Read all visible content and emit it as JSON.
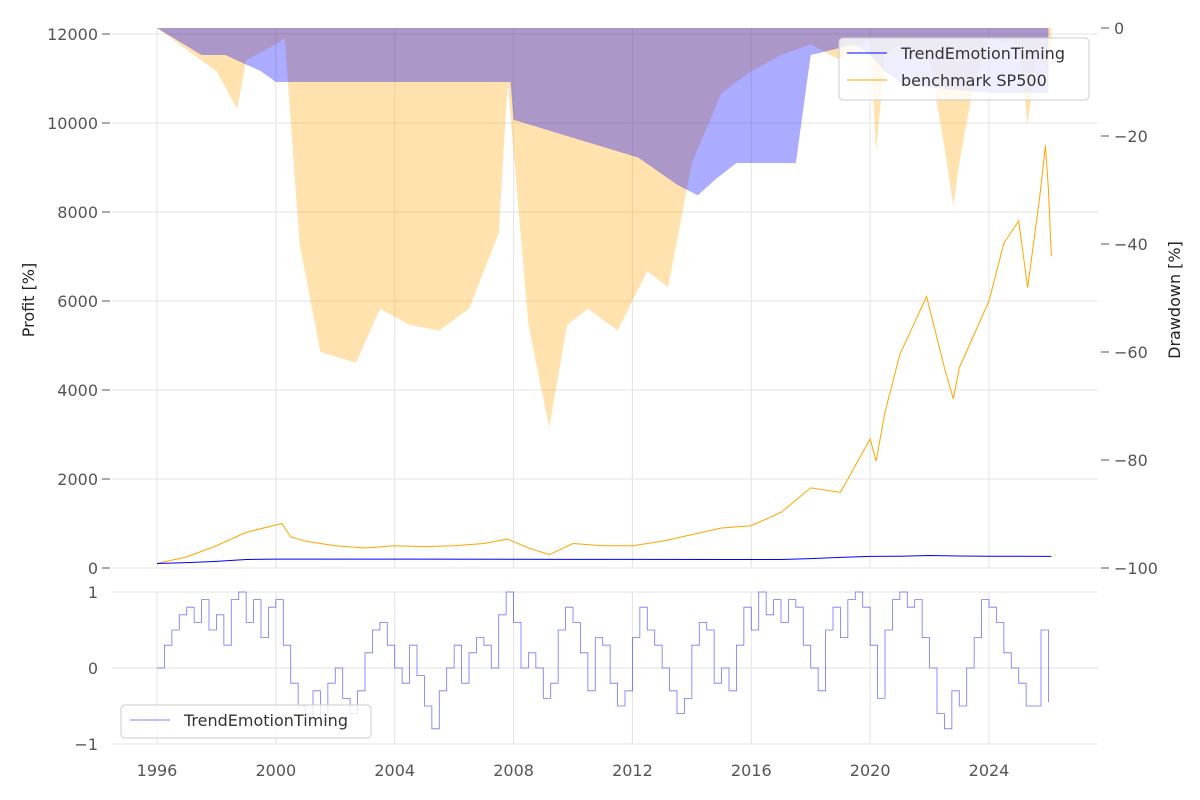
{
  "chart_data": [
    {
      "type": "line",
      "panel": "profit-and-drawdown",
      "ylabel": "Profit [%]",
      "ylabel_right": "Drawdown [%]",
      "ylim": [
        0,
        12000
      ],
      "ylim_right": [
        -100,
        0
      ],
      "yticks": [
        0,
        2000,
        4000,
        6000,
        8000,
        10000,
        12000
      ],
      "yticks_right": [
        0,
        -20,
        -40,
        -60,
        -80,
        -100
      ],
      "legend": [
        "TrendEmotionTiming",
        "benchmark SP500"
      ],
      "legend_position": "top-right",
      "colors": {
        "strategy": "#0000ff",
        "benchmark": "#ffa500"
      },
      "grid": true,
      "series": [
        {
          "name": "TrendEmotionTiming",
          "axis": "left",
          "x": [
            1996,
            1997,
            1998,
            1999,
            2000,
            2005,
            2010,
            2015,
            2017,
            2018,
            2019,
            2020,
            2021,
            2022,
            2023,
            2024,
            2025,
            2026.1
          ],
          "values": [
            100,
            120,
            150,
            190,
            200,
            200,
            195,
            190,
            190,
            210,
            240,
            260,
            265,
            280,
            270,
            265,
            265,
            260
          ]
        },
        {
          "name": "benchmark SP500",
          "axis": "left",
          "x": [
            1996,
            1997,
            1998,
            1999,
            2000.2,
            2000.5,
            2001,
            2002,
            2003,
            2004,
            2005,
            2006,
            2007,
            2007.8,
            2008.5,
            2009.2,
            2010,
            2011,
            2012,
            2013,
            2014,
            2015,
            2016,
            2017,
            2018,
            2019,
            2019.5,
            2020,
            2020.2,
            2020.5,
            2021,
            2021.9,
            2022.5,
            2022.8,
            2023,
            2024,
            2024.5,
            2025,
            2025.3,
            2025.7,
            2025.9,
            2026,
            2026.1
          ],
          "values": [
            100,
            250,
            500,
            800,
            1000,
            700,
            600,
            500,
            450,
            500,
            480,
            500,
            550,
            650,
            450,
            300,
            550,
            500,
            500,
            600,
            750,
            900,
            950,
            1250,
            1800,
            1700,
            2300,
            2900,
            2400,
            3500,
            4800,
            6100,
            4500,
            3800,
            4500,
            6000,
            7300,
            7800,
            6300,
            8300,
            9500,
            8500,
            7000
          ]
        },
        {
          "name": "TrendEmotionTiming drawdown",
          "axis": "right",
          "x": [
            1996,
            1997.5,
            1998.3,
            1999.5,
            2000,
            2007.9,
            2008,
            2012.2,
            2013.5,
            2014.2,
            2014.8,
            2015.5,
            2016,
            2017.5,
            2018,
            2019.5,
            2020,
            2020.5,
            2021,
            2022,
            2024,
            2025,
            2026
          ],
          "values": [
            0,
            -5,
            -5,
            -8,
            -10,
            -10,
            -17,
            -24,
            -29,
            -31,
            -28,
            -25,
            -25,
            -25,
            -5,
            -3,
            -5,
            -8,
            -10,
            -11,
            -12,
            -12,
            -12
          ]
        },
        {
          "name": "benchmark SP500 drawdown",
          "axis": "right",
          "x": [
            1996,
            1997,
            1998,
            1998.7,
            1999,
            2000,
            2000.3,
            2000.8,
            2001.5,
            2002.7,
            2003.5,
            2004.5,
            2005.5,
            2006.5,
            2007.5,
            2007.8,
            2008.5,
            2009.2,
            2009.8,
            2010.5,
            2011.5,
            2012.5,
            2013.2,
            2014,
            2015,
            2016,
            2017,
            2018,
            2019,
            2020,
            2020.2,
            2020.5,
            2021,
            2022,
            2022.5,
            2022.8,
            2023,
            2023.5,
            2024,
            2025,
            2025.3,
            2025.6,
            2026,
            2026.1
          ],
          "values": [
            0,
            -4,
            -8,
            -15,
            -6,
            -3,
            -2,
            -40,
            -60,
            -62,
            -52,
            -55,
            -56,
            -52,
            -38,
            -10,
            -55,
            -74,
            -55,
            -52,
            -56,
            -45,
            -48,
            -25,
            -12,
            -8,
            -5,
            -3,
            -6,
            -2,
            -23,
            -5,
            -3,
            -6,
            -22,
            -33,
            -25,
            -10,
            -2,
            -3,
            -18,
            -5,
            -8,
            -3
          ]
        }
      ]
    },
    {
      "type": "line",
      "panel": "signal",
      "ylim": [
        -1,
        1
      ],
      "yticks": [
        -1,
        0,
        1
      ],
      "xlim": [
        1994.5,
        2027.6
      ],
      "xticks": [
        1996,
        2000,
        2004,
        2008,
        2012,
        2016,
        2020,
        2024
      ],
      "legend": [
        "TrendEmotionTiming"
      ],
      "legend_position": "bottom-left",
      "series": [
        {
          "name": "TrendEmotionTiming",
          "x_start": 1996,
          "x_step": 0.25,
          "values": [
            0,
            0.3,
            0.5,
            0.7,
            0.8,
            0.6,
            0.9,
            0.5,
            0.7,
            0.3,
            0.9,
            1,
            0.6,
            0.9,
            0.4,
            0.8,
            0.9,
            0.3,
            -0.2,
            -0.5,
            -0.6,
            -0.3,
            -0.7,
            -0.2,
            0,
            -0.4,
            -0.6,
            -0.3,
            0.2,
            0.5,
            0.6,
            0.3,
            0,
            -0.2,
            0.3,
            -0.1,
            -0.5,
            -0.8,
            -0.3,
            0,
            0.3,
            -0.2,
            0.2,
            0.4,
            0.3,
            0,
            0.7,
            1,
            0.6,
            0,
            0.2,
            0,
            -0.4,
            -0.2,
            0.5,
            0.8,
            0.6,
            0.2,
            -0.3,
            0.4,
            0.3,
            -0.2,
            -0.5,
            -0.3,
            0.4,
            0.8,
            0.5,
            0.3,
            0,
            -0.3,
            -0.6,
            -0.4,
            0.3,
            0.6,
            0.5,
            -0.2,
            0,
            -0.3,
            0.3,
            0.8,
            0.5,
            1,
            0.7,
            0.9,
            0.6,
            0.9,
            0.8,
            0.3,
            0,
            -0.3,
            0.5,
            0.8,
            0.4,
            0.9,
            1,
            0.8,
            0.3,
            -0.4,
            0.5,
            0.9,
            1,
            0.8,
            0.9,
            0.4,
            0,
            -0.6,
            -0.8,
            -0.3,
            -0.5,
            0,
            0.4,
            0.9,
            0.8,
            0.6,
            0.2,
            0,
            -0.2,
            -0.5,
            -0.5,
            0.5,
            -0.45
          ]
        }
      ]
    }
  ]
}
